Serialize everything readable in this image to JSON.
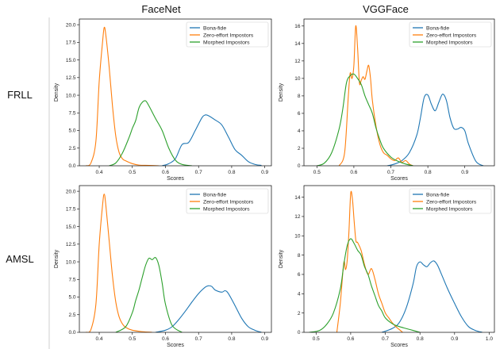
{
  "figure": {
    "col_titles": [
      "FaceNet",
      "VGGFace"
    ],
    "row_labels": [
      "FRLL",
      "AMSL"
    ],
    "colors": {
      "bona": "#1f77b4",
      "zero": "#ff7f0e",
      "morph": "#2ca02c",
      "divider": "#cfcfcf"
    }
  },
  "chart_data": [
    {
      "type": "line",
      "row": "FRLL",
      "col": "FaceNet",
      "xlabel": "Scores",
      "ylabel": "Density",
      "xlim": [
        0.34,
        0.92
      ],
      "ylim": [
        0,
        20.8
      ],
      "xticks": [
        0.4,
        0.5,
        0.6,
        0.7,
        0.8,
        0.9
      ],
      "yticks": [
        0.0,
        2.5,
        5.0,
        7.5,
        10.0,
        12.5,
        15.0,
        17.5,
        20.0
      ],
      "grid": false,
      "legend": "top-right",
      "series": [
        {
          "name": "Bona-fide",
          "color": "#1f77b4",
          "x": [
            0.59,
            0.61,
            0.63,
            0.65,
            0.67,
            0.69,
            0.71,
            0.72,
            0.73,
            0.75,
            0.77,
            0.79,
            0.81,
            0.83,
            0.85,
            0.87,
            0.89
          ],
          "y": [
            0,
            0.3,
            1.0,
            3.0,
            3.3,
            5.0,
            6.8,
            7.2,
            7.1,
            6.5,
            5.8,
            4.1,
            2.3,
            1.5,
            0.6,
            0.2,
            0.05
          ]
        },
        {
          "name": "Zero-effort Impostors",
          "color": "#ff7f0e",
          "x": [
            0.36,
            0.375,
            0.39,
            0.4,
            0.41,
            0.415,
            0.42,
            0.43,
            0.44,
            0.45,
            0.46,
            0.47,
            0.48,
            0.5,
            0.52,
            0.55,
            0.58
          ],
          "y": [
            0,
            0.4,
            3.5,
            12,
            17.5,
            19.6,
            18.5,
            14,
            8.5,
            4.2,
            1.9,
            1.0,
            0.7,
            0.3,
            0.1,
            0.05,
            0
          ]
        },
        {
          "name": "Morphed Impostors",
          "color": "#2ca02c",
          "x": [
            0.43,
            0.45,
            0.47,
            0.49,
            0.5,
            0.51,
            0.52,
            0.53,
            0.54,
            0.55,
            0.57,
            0.59,
            0.61,
            0.63,
            0.65,
            0.68
          ],
          "y": [
            0,
            0.4,
            1.8,
            4.0,
            5.3,
            6.4,
            8.2,
            9.0,
            9.2,
            8.5,
            6.7,
            5.0,
            2.5,
            0.8,
            0.2,
            0
          ]
        }
      ]
    },
    {
      "type": "line",
      "row": "FRLL",
      "col": "VGGFace",
      "xlabel": "Scores",
      "ylabel": "Density",
      "xlim": [
        0.465,
        0.98
      ],
      "ylim": [
        0,
        16.8
      ],
      "xticks": [
        0.5,
        0.6,
        0.7,
        0.8,
        0.9
      ],
      "yticks": [
        0,
        2,
        4,
        6,
        8,
        10,
        12,
        14,
        16
      ],
      "grid": false,
      "legend": "top-right",
      "series": [
        {
          "name": "Bona-fide",
          "color": "#1f77b4",
          "x": [
            0.69,
            0.71,
            0.73,
            0.75,
            0.77,
            0.78,
            0.79,
            0.8,
            0.81,
            0.82,
            0.83,
            0.84,
            0.85,
            0.86,
            0.87,
            0.88,
            0.89,
            0.9,
            0.91,
            0.93,
            0.95
          ],
          "y": [
            0,
            0.2,
            0.6,
            1.5,
            3.5,
            5.5,
            7.8,
            8.1,
            7.0,
            6.3,
            7.3,
            8.2,
            7.5,
            5.5,
            4.3,
            4.2,
            4.4,
            4.0,
            2.5,
            0.5,
            0
          ]
        },
        {
          "name": "Zero-effort Impostors",
          "color": "#ff7f0e",
          "x": [
            0.56,
            0.575,
            0.585,
            0.59,
            0.595,
            0.6,
            0.605,
            0.61,
            0.615,
            0.62,
            0.625,
            0.63,
            0.635,
            0.64,
            0.645,
            0.65,
            0.66,
            0.67,
            0.68,
            0.69,
            0.7,
            0.71,
            0.72,
            0.73,
            0.74,
            0.75,
            0.76
          ],
          "y": [
            0,
            1.5,
            8.0,
            10.6,
            10.0,
            11.5,
            16.0,
            13.5,
            9.5,
            9.8,
            10.2,
            9.9,
            10.8,
            11.5,
            10.0,
            7.5,
            4.5,
            2.5,
            1.5,
            1.2,
            0.8,
            0.6,
            0.9,
            0.4,
            0.6,
            0.2,
            0
          ]
        },
        {
          "name": "Morphed Impostors",
          "color": "#2ca02c",
          "x": [
            0.5,
            0.52,
            0.54,
            0.56,
            0.57,
            0.58,
            0.59,
            0.6,
            0.61,
            0.62,
            0.63,
            0.64,
            0.65,
            0.66,
            0.67,
            0.68,
            0.7,
            0.72,
            0.74,
            0.76
          ],
          "y": [
            0,
            0.3,
            1.5,
            4.2,
            6.5,
            9.5,
            10.3,
            10.5,
            10.0,
            9.3,
            8.0,
            7.0,
            6.0,
            4.3,
            3.0,
            2.0,
            1.0,
            0.5,
            0.2,
            0
          ]
        }
      ]
    },
    {
      "type": "line",
      "row": "AMSL",
      "col": "FaceNet",
      "xlabel": "Scores",
      "ylabel": "Density",
      "xlim": [
        0.34,
        0.92
      ],
      "ylim": [
        0,
        20.8
      ],
      "xticks": [
        0.4,
        0.5,
        0.6,
        0.7,
        0.8,
        0.9
      ],
      "yticks": [
        0.0,
        2.5,
        5.0,
        7.5,
        10.0,
        12.5,
        15.0,
        17.5,
        20.0
      ],
      "grid": false,
      "legend": "top-right",
      "series": [
        {
          "name": "Bona-fide",
          "color": "#1f77b4",
          "x": [
            0.57,
            0.6,
            0.62,
            0.64,
            0.66,
            0.68,
            0.7,
            0.72,
            0.73,
            0.74,
            0.75,
            0.77,
            0.78,
            0.79,
            0.81,
            0.83,
            0.85,
            0.87,
            0.89
          ],
          "y": [
            0,
            0.3,
            0.8,
            1.8,
            3.0,
            4.3,
            5.5,
            6.4,
            6.6,
            6.5,
            6.0,
            5.7,
            5.9,
            5.5,
            3.8,
            2.0,
            0.8,
            0.3,
            0
          ]
        },
        {
          "name": "Zero-effort Impostors",
          "color": "#ff7f0e",
          "x": [
            0.36,
            0.375,
            0.39,
            0.4,
            0.41,
            0.415,
            0.42,
            0.43,
            0.44,
            0.45,
            0.46,
            0.47,
            0.48,
            0.5,
            0.53,
            0.56
          ],
          "y": [
            0,
            0.4,
            4.0,
            12.5,
            18.0,
            19.6,
            18.0,
            13.0,
            8.0,
            4.3,
            2.2,
            1.2,
            0.7,
            0.3,
            0.1,
            0
          ]
        },
        {
          "name": "Morphed Impostors",
          "color": "#2ca02c",
          "x": [
            0.45,
            0.48,
            0.5,
            0.51,
            0.52,
            0.53,
            0.54,
            0.55,
            0.56,
            0.57,
            0.58,
            0.59,
            0.6,
            0.62,
            0.65
          ],
          "y": [
            0,
            0.8,
            2.8,
            4.5,
            6.0,
            7.8,
            9.5,
            10.5,
            10.3,
            10.6,
            9.5,
            7.0,
            4.0,
            1.0,
            0
          ]
        }
      ]
    },
    {
      "type": "line",
      "row": "AMSL",
      "col": "VGGFace",
      "xlabel": "Scores",
      "ylabel": "Density",
      "xlim": [
        0.465,
        1.015
      ],
      "ylim": [
        0,
        15.2
      ],
      "xticks": [
        0.5,
        0.6,
        0.7,
        0.8,
        0.9,
        1.0
      ],
      "yticks": [
        0,
        2,
        4,
        6,
        8,
        10,
        12,
        14
      ],
      "grid": false,
      "legend": "top-right",
      "series": [
        {
          "name": "Bona-fide",
          "color": "#1f77b4",
          "x": [
            0.69,
            0.72,
            0.74,
            0.76,
            0.78,
            0.79,
            0.8,
            0.81,
            0.82,
            0.83,
            0.84,
            0.85,
            0.86,
            0.88,
            0.9,
            0.92,
            0.94,
            0.96,
            0.98
          ],
          "y": [
            0,
            0.4,
            1.0,
            2.5,
            5.0,
            6.8,
            7.3,
            7.0,
            6.8,
            7.2,
            7.4,
            7.0,
            6.2,
            4.5,
            3.0,
            1.6,
            0.6,
            0.2,
            0
          ]
        },
        {
          "name": "Zero-effort Impostors",
          "color": "#ff7f0e",
          "x": [
            0.56,
            0.57,
            0.58,
            0.585,
            0.59,
            0.595,
            0.6,
            0.605,
            0.61,
            0.615,
            0.62,
            0.63,
            0.64,
            0.65,
            0.66,
            0.67,
            0.68,
            0.69,
            0.7,
            0.71,
            0.72,
            0.73,
            0.74,
            0.75
          ],
          "y": [
            0,
            3.0,
            7.2,
            6.5,
            7.5,
            10.5,
            14.4,
            13.8,
            11.5,
            9.5,
            9.3,
            8.5,
            7.0,
            6.0,
            6.6,
            5.5,
            4.0,
            3.0,
            2.0,
            1.5,
            1.0,
            0.6,
            0.3,
            0
          ]
        },
        {
          "name": "Morphed Impostors",
          "color": "#2ca02c",
          "x": [
            0.48,
            0.51,
            0.53,
            0.55,
            0.57,
            0.58,
            0.59,
            0.6,
            0.61,
            0.62,
            0.63,
            0.64,
            0.65,
            0.66,
            0.67,
            0.68,
            0.69,
            0.7,
            0.72,
            0.74,
            0.77,
            0.8
          ],
          "y": [
            0,
            0.2,
            0.8,
            2.0,
            4.5,
            7.0,
            9.0,
            9.7,
            9.2,
            8.5,
            8.0,
            6.8,
            6.0,
            4.8,
            3.8,
            2.8,
            2.2,
            1.5,
            0.9,
            0.6,
            0.3,
            0
          ]
        }
      ]
    }
  ]
}
